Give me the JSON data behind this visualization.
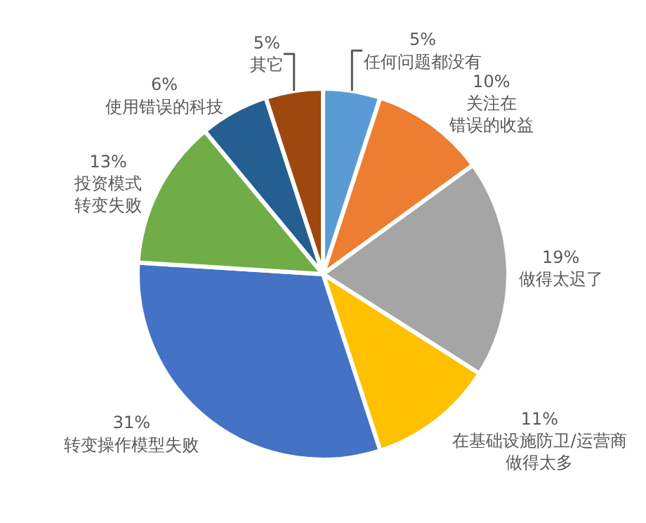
{
  "chart_data": {
    "type": "pie",
    "categories": [
      "任何问题都没有",
      "关注在错误的收益",
      "做得太迟了",
      "在基础设施防卫/运营商做得太多",
      "转变操作模型失败",
      "投资模式转变失败",
      "使用错误的科技",
      "其它"
    ],
    "values": [
      5,
      10,
      19,
      11,
      31,
      13,
      6,
      5
    ],
    "value_labels": [
      "5%",
      "10%",
      "19%",
      "11%",
      "31%",
      "13%",
      "6%",
      "5%"
    ],
    "colors": [
      "#5b9bd5",
      "#ed7d31",
      "#a5a5a5",
      "#ffc000",
      "#4472c4",
      "#70ad47",
      "#255e91",
      "#9e480e"
    ],
    "legend": false
  }
}
